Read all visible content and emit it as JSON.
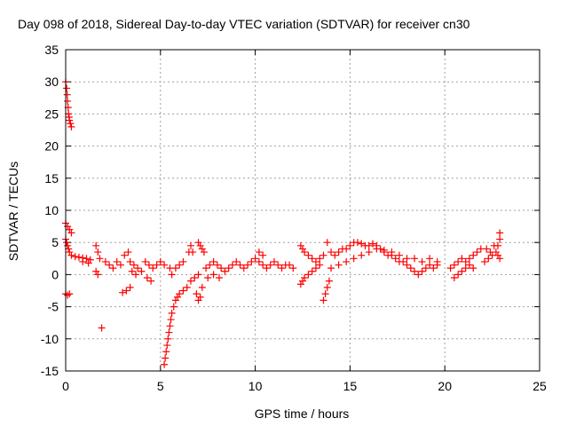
{
  "chart_data": {
    "type": "scatter",
    "title": "Day 098 of 2018, Sidereal Day-to-day VTEC variation (SDTVAR) for receiver cn30",
    "xlabel": "GPS time / hours",
    "ylabel": "SDTVAR / TECUs",
    "xlim": [
      0,
      25
    ],
    "ylim": [
      -15,
      35
    ],
    "x_ticks": [
      "0",
      "5",
      "10",
      "15",
      "20",
      "25"
    ],
    "y_ticks": [
      "-15",
      "-10",
      "-5",
      "0",
      "5",
      "10",
      "15",
      "20",
      "25",
      "30",
      "35"
    ],
    "grid": true,
    "legend": "none",
    "series_color": "#ff0000",
    "marker": "plus",
    "series": [
      {
        "name": "cn30 SDTVAR",
        "points": [
          [
            0.0,
            30.0
          ],
          [
            0.05,
            29.0
          ],
          [
            0.08,
            28.0
          ],
          [
            0.1,
            27.0
          ],
          [
            0.13,
            26.0
          ],
          [
            0.15,
            25.0
          ],
          [
            0.18,
            24.5
          ],
          [
            0.2,
            24.0
          ],
          [
            0.25,
            23.5
          ],
          [
            0.3,
            23.0
          ],
          [
            0.0,
            8.0
          ],
          [
            0.1,
            7.5
          ],
          [
            0.2,
            7.0
          ],
          [
            0.3,
            6.5
          ],
          [
            0.0,
            5.5
          ],
          [
            0.05,
            5.0
          ],
          [
            0.1,
            4.5
          ],
          [
            0.15,
            4.0
          ],
          [
            0.2,
            3.5
          ],
          [
            0.3,
            3.0
          ],
          [
            0.5,
            2.8
          ],
          [
            0.7,
            2.7
          ],
          [
            0.9,
            2.6
          ],
          [
            1.1,
            2.5
          ],
          [
            1.3,
            2.3
          ],
          [
            0.0,
            -3.0
          ],
          [
            0.1,
            -3.2
          ],
          [
            0.2,
            -3.0
          ],
          [
            0.9,
            2.0
          ],
          [
            1.2,
            1.8
          ],
          [
            1.6,
            4.5
          ],
          [
            1.7,
            3.5
          ],
          [
            1.8,
            2.5
          ],
          [
            1.6,
            0.5
          ],
          [
            1.7,
            0.0
          ],
          [
            1.9,
            -8.3
          ],
          [
            2.1,
            2.0
          ],
          [
            2.3,
            1.5
          ],
          [
            2.5,
            1.0
          ],
          [
            2.7,
            2.0
          ],
          [
            2.9,
            1.5
          ],
          [
            3.0,
            -2.8
          ],
          [
            3.2,
            -2.5
          ],
          [
            3.4,
            -2.0
          ],
          [
            3.1,
            3.0
          ],
          [
            3.3,
            3.5
          ],
          [
            3.4,
            2.0
          ],
          [
            3.6,
            1.5
          ],
          [
            3.8,
            1.0
          ],
          [
            4.0,
            0.5
          ],
          [
            3.5,
            0.5
          ],
          [
            3.7,
            0.0
          ],
          [
            4.2,
            2.0
          ],
          [
            4.4,
            1.5
          ],
          [
            4.6,
            1.0
          ],
          [
            4.8,
            1.5
          ],
          [
            5.0,
            2.0
          ],
          [
            5.2,
            1.5
          ],
          [
            5.5,
            1.0
          ],
          [
            4.3,
            -0.5
          ],
          [
            4.5,
            -1.0
          ],
          [
            5.2,
            -14.0
          ],
          [
            5.25,
            -13.0
          ],
          [
            5.3,
            -12.0
          ],
          [
            5.35,
            -11.0
          ],
          [
            5.4,
            -10.0
          ],
          [
            5.45,
            -9.0
          ],
          [
            5.5,
            -8.0
          ],
          [
            5.55,
            -7.0
          ],
          [
            5.6,
            -6.0
          ],
          [
            5.7,
            -5.0
          ],
          [
            5.8,
            -4.0
          ],
          [
            5.9,
            -3.5
          ],
          [
            6.0,
            -3.0
          ],
          [
            6.2,
            -2.5
          ],
          [
            6.4,
            -2.0
          ],
          [
            6.6,
            -1.0
          ],
          [
            6.8,
            -0.5
          ],
          [
            7.0,
            0.0
          ],
          [
            5.6,
            0.0
          ],
          [
            5.8,
            1.0
          ],
          [
            6.0,
            1.5
          ],
          [
            6.2,
            2.0
          ],
          [
            6.5,
            3.5
          ],
          [
            6.6,
            4.5
          ],
          [
            6.7,
            3.5
          ],
          [
            7.0,
            5.0
          ],
          [
            7.1,
            4.5
          ],
          [
            7.2,
            4.0
          ],
          [
            7.3,
            3.5
          ],
          [
            6.9,
            -3.0
          ],
          [
            7.0,
            -4.0
          ],
          [
            7.1,
            -3.5
          ],
          [
            7.2,
            -2.0
          ],
          [
            7.4,
            1.0
          ],
          [
            7.6,
            1.5
          ],
          [
            7.8,
            2.0
          ],
          [
            8.0,
            1.5
          ],
          [
            8.2,
            1.0
          ],
          [
            8.4,
            0.5
          ],
          [
            8.6,
            1.0
          ],
          [
            8.8,
            1.5
          ],
          [
            9.0,
            2.0
          ],
          [
            9.2,
            1.5
          ],
          [
            7.5,
            -0.5
          ],
          [
            7.8,
            0.0
          ],
          [
            8.1,
            -0.5
          ],
          [
            9.4,
            1.0
          ],
          [
            9.6,
            1.5
          ],
          [
            9.8,
            2.0
          ],
          [
            10.0,
            2.5
          ],
          [
            10.2,
            2.0
          ],
          [
            10.4,
            1.5
          ],
          [
            10.6,
            1.0
          ],
          [
            10.8,
            1.5
          ],
          [
            11.0,
            2.0
          ],
          [
            11.2,
            1.5
          ],
          [
            11.4,
            1.0
          ],
          [
            11.6,
            1.5
          ],
          [
            11.8,
            1.5
          ],
          [
            12.0,
            1.0
          ],
          [
            10.2,
            3.5
          ],
          [
            10.4,
            3.0
          ],
          [
            12.4,
            4.5
          ],
          [
            12.5,
            4.0
          ],
          [
            12.6,
            3.5
          ],
          [
            12.8,
            3.0
          ],
          [
            13.0,
            2.5
          ],
          [
            13.2,
            2.0
          ],
          [
            13.4,
            2.5
          ],
          [
            13.6,
            3.0
          ],
          [
            12.4,
            -1.5
          ],
          [
            12.5,
            -1.0
          ],
          [
            12.6,
            -0.5
          ],
          [
            12.8,
            0.0
          ],
          [
            13.0,
            0.5
          ],
          [
            13.2,
            1.0
          ],
          [
            13.4,
            1.5
          ],
          [
            13.6,
            -4.0
          ],
          [
            13.7,
            -3.0
          ],
          [
            13.8,
            -2.0
          ],
          [
            13.9,
            -1.0
          ],
          [
            13.8,
            5.0
          ],
          [
            14.0,
            3.5
          ],
          [
            14.2,
            3.0
          ],
          [
            14.4,
            3.5
          ],
          [
            14.6,
            4.0
          ],
          [
            14.8,
            4.0
          ],
          [
            15.0,
            4.5
          ],
          [
            15.2,
            5.0
          ],
          [
            15.4,
            5.0
          ],
          [
            15.6,
            4.8
          ],
          [
            15.8,
            4.5
          ],
          [
            16.0,
            4.5
          ],
          [
            16.2,
            4.8
          ],
          [
            16.4,
            4.5
          ],
          [
            16.6,
            4.0
          ],
          [
            16.8,
            3.5
          ],
          [
            17.0,
            3.0
          ],
          [
            17.2,
            3.0
          ],
          [
            17.4,
            2.5
          ],
          [
            17.6,
            2.0
          ],
          [
            17.8,
            2.0
          ],
          [
            18.0,
            1.5
          ],
          [
            18.2,
            1.0
          ],
          [
            18.4,
            0.5
          ],
          [
            18.6,
            0.0
          ],
          [
            18.8,
            0.5
          ],
          [
            19.0,
            1.0
          ],
          [
            19.2,
            1.5
          ],
          [
            19.4,
            1.0
          ],
          [
            19.6,
            1.5
          ],
          [
            14.0,
            1.0
          ],
          [
            14.4,
            1.5
          ],
          [
            14.8,
            2.0
          ],
          [
            15.2,
            2.5
          ],
          [
            15.6,
            3.0
          ],
          [
            16.0,
            3.5
          ],
          [
            16.4,
            4.0
          ],
          [
            16.8,
            3.8
          ],
          [
            17.2,
            3.5
          ],
          [
            17.6,
            3.0
          ],
          [
            18.0,
            2.5
          ],
          [
            18.4,
            2.5
          ],
          [
            18.8,
            2.0
          ],
          [
            19.2,
            2.5
          ],
          [
            19.6,
            2.0
          ],
          [
            20.3,
            1.0
          ],
          [
            20.5,
            1.5
          ],
          [
            20.7,
            2.0
          ],
          [
            20.9,
            2.5
          ],
          [
            21.1,
            2.0
          ],
          [
            21.3,
            2.5
          ],
          [
            21.5,
            3.0
          ],
          [
            21.7,
            3.5
          ],
          [
            21.9,
            4.0
          ],
          [
            20.5,
            -0.5
          ],
          [
            20.7,
            0.0
          ],
          [
            20.9,
            0.5
          ],
          [
            21.1,
            1.0
          ],
          [
            21.3,
            1.5
          ],
          [
            21.5,
            1.0
          ],
          [
            22.1,
            2.0
          ],
          [
            22.3,
            2.5
          ],
          [
            22.5,
            3.0
          ],
          [
            22.7,
            3.5
          ],
          [
            22.8,
            4.5
          ],
          [
            22.9,
            5.5
          ],
          [
            22.9,
            6.5
          ],
          [
            22.2,
            4.0
          ],
          [
            22.4,
            3.5
          ],
          [
            22.6,
            4.5
          ],
          [
            22.8,
            3.0
          ],
          [
            22.9,
            2.5
          ]
        ]
      }
    ]
  }
}
